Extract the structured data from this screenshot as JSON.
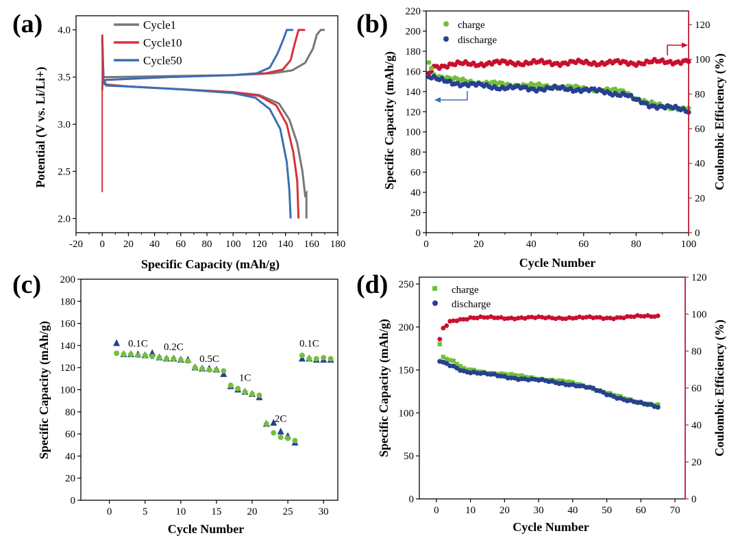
{
  "colors": {
    "gray": "#777777",
    "red": "#d9303b",
    "blue": "#3a6fb5",
    "green": "#73bf3c",
    "navy": "#27408f",
    "dred": "#c8102e",
    "axis": "#000000"
  },
  "chart_data": [
    {
      "panel_label": "(a)",
      "type": "line",
      "xlabel": "Specific Capacity (mAh/g)",
      "ylabel": "Potential (V vs. Li/Li+)",
      "xlim": [
        -20,
        180
      ],
      "ylim": [
        1.85,
        4.15
      ],
      "xticks": [
        "-20",
        "0",
        "20",
        "40",
        "60",
        "80",
        "100",
        "120",
        "140",
        "160",
        "180"
      ],
      "yticks": [
        "2.0",
        "2.5",
        "3.0",
        "3.5",
        "4.0"
      ],
      "series": [
        {
          "name": "Cycle1",
          "color": "#777777",
          "charge": [
            [
              0,
              3.36
            ],
            [
              0.5,
              3.5
            ],
            [
              5,
              3.5
            ],
            [
              50,
              3.51
            ],
            [
              100,
              3.52
            ],
            [
              130,
              3.54
            ],
            [
              145,
              3.57
            ],
            [
              155,
              3.65
            ],
            [
              161,
              3.8
            ],
            [
              164,
              3.95
            ],
            [
              167,
              4.0
            ],
            [
              170,
              4.0
            ]
          ],
          "discharge": [
            [
              0,
              3.9
            ],
            [
              1,
              3.48
            ],
            [
              3,
              3.42
            ],
            [
              20,
              3.4
            ],
            [
              60,
              3.37
            ],
            [
              100,
              3.34
            ],
            [
              120,
              3.31
            ],
            [
              135,
              3.22
            ],
            [
              143,
              3.05
            ],
            [
              149,
              2.8
            ],
            [
              153,
              2.5
            ],
            [
              155,
              2.25
            ],
            [
              156,
              2.27
            ],
            [
              156,
              2.0
            ]
          ]
        },
        {
          "name": "Cycle10",
          "color": "#d9303b",
          "charge": [
            [
              0,
              3.45
            ],
            [
              3,
              3.47
            ],
            [
              50,
              3.5
            ],
            [
              100,
              3.52
            ],
            [
              125,
              3.54
            ],
            [
              138,
              3.58
            ],
            [
              144,
              3.68
            ],
            [
              147,
              3.85
            ],
            [
              150,
              4.0
            ],
            [
              155,
              4.0
            ]
          ],
          "discharge": [
            [
              0,
              3.95
            ],
            [
              1,
              3.45
            ],
            [
              3,
              3.42
            ],
            [
              20,
              3.4
            ],
            [
              60,
              3.37
            ],
            [
              100,
              3.34
            ],
            [
              120,
              3.3
            ],
            [
              133,
              3.2
            ],
            [
              141,
              3.0
            ],
            [
              146,
              2.7
            ],
            [
              149,
              2.4
            ],
            [
              150,
              2.0
            ]
          ]
        },
        {
          "name": "Cycle50",
          "color": "#3a6fb5",
          "charge": [
            [
              0,
              3.45
            ],
            [
              3,
              3.47
            ],
            [
              50,
              3.5
            ],
            [
              100,
              3.52
            ],
            [
              118,
              3.54
            ],
            [
              128,
              3.6
            ],
            [
              134,
              3.75
            ],
            [
              139,
              3.92
            ],
            [
              141,
              4.0
            ],
            [
              146,
              4.0
            ]
          ],
          "discharge": [
            [
              0,
              3.9
            ],
            [
              1,
              3.44
            ],
            [
              3,
              3.41
            ],
            [
              20,
              3.4
            ],
            [
              60,
              3.37
            ],
            [
              100,
              3.33
            ],
            [
              117,
              3.28
            ],
            [
              128,
              3.16
            ],
            [
              136,
              2.95
            ],
            [
              141,
              2.6
            ],
            [
              143,
              2.3
            ],
            [
              144,
              2.0
            ]
          ]
        }
      ],
      "first_point_discharge_start": 2.28
    },
    {
      "panel_label": "(b)",
      "type": "scatter",
      "xlabel": "Cycle  Number",
      "ylabel": "Specific Capacity (mAh/g)",
      "ylabel_right": "Coulombic Efficiency (%)",
      "xlim": [
        0,
        100
      ],
      "ylim": [
        0,
        220
      ],
      "ylim_right": [
        0,
        120
      ],
      "xticks": [
        "0",
        "20",
        "40",
        "60",
        "80",
        "100"
      ],
      "yticks": [
        "0",
        "20",
        "40",
        "60",
        "80",
        "100",
        "120",
        "140",
        "160",
        "180",
        "200",
        "220"
      ],
      "yticks_right": [
        "0",
        "20",
        "40",
        "60",
        "80",
        "100",
        "120"
      ],
      "legend": [
        "charge",
        "discharge"
      ],
      "charge_trend": [
        [
          1,
          170
        ],
        [
          3,
          157
        ],
        [
          10,
          152
        ],
        [
          20,
          149
        ],
        [
          30,
          147
        ],
        [
          40,
          146
        ],
        [
          50,
          145
        ],
        [
          60,
          143
        ],
        [
          70,
          141
        ],
        [
          76,
          140
        ],
        [
          80,
          133
        ],
        [
          85,
          128
        ],
        [
          90,
          126
        ],
        [
          95,
          124
        ],
        [
          100,
          122
        ]
      ],
      "discharge_trend": [
        [
          1,
          155
        ],
        [
          5,
          151
        ],
        [
          10,
          149
        ],
        [
          20,
          146
        ],
        [
          30,
          144
        ],
        [
          40,
          143
        ],
        [
          50,
          143
        ],
        [
          60,
          142
        ],
        [
          70,
          139
        ],
        [
          76,
          137
        ],
        [
          80,
          131
        ],
        [
          85,
          127
        ],
        [
          90,
          125
        ],
        [
          95,
          123
        ],
        [
          100,
          121
        ]
      ],
      "efficiency_trend": [
        [
          1,
          91
        ],
        [
          3,
          96
        ],
        [
          10,
          97
        ],
        [
          30,
          98
        ],
        [
          60,
          98
        ],
        [
          80,
          98
        ],
        [
          100,
          99
        ]
      ]
    },
    {
      "panel_label": "(c)",
      "type": "scatter",
      "xlabel": "Cycle  Number",
      "ylabel": "Specific Capacity (mAh/g)",
      "xlim": [
        -4,
        32
      ],
      "ylim": [
        0,
        200
      ],
      "xticks": [
        "0",
        "5",
        "10",
        "15",
        "20",
        "25",
        "30"
      ],
      "yticks": [
        "0",
        "20",
        "40",
        "60",
        "80",
        "100",
        "120",
        "140",
        "160",
        "180",
        "200"
      ],
      "rate_labels": [
        {
          "text": "0.1C",
          "x": 4,
          "y": 139
        },
        {
          "text": "0.2C",
          "x": 9,
          "y": 136
        },
        {
          "text": "0.5C",
          "x": 14,
          "y": 125
        },
        {
          "text": "1C",
          "x": 19,
          "y": 108
        },
        {
          "text": "2C",
          "x": 24,
          "y": 71
        },
        {
          "text": "0.1C",
          "x": 28,
          "y": 139
        }
      ],
      "discharge_triangles": [
        142,
        132,
        132,
        132,
        131,
        133,
        129,
        128,
        128,
        127,
        127,
        120,
        119,
        119,
        118,
        114,
        103,
        100,
        98,
        96,
        93,
        69,
        70,
        62,
        58,
        52,
        128,
        128,
        127,
        127,
        127
      ],
      "charge_circles": [
        133,
        132,
        132,
        131,
        131,
        130,
        129,
        128,
        128,
        127,
        126,
        120,
        119,
        118,
        118,
        117,
        104,
        101,
        98,
        96,
        95,
        69,
        61,
        57,
        56,
        54,
        131,
        128,
        128,
        129,
        128
      ]
    },
    {
      "panel_label": "(d)",
      "type": "scatter",
      "xlabel": "Cycle  Number",
      "ylabel": "Specific Capacity (mAh/g)",
      "ylabel_right": "Coulombic Efficiency (%)",
      "xlim": [
        -5,
        73
      ],
      "ylim": [
        0,
        258
      ],
      "ylim_right": [
        0,
        120
      ],
      "xticks": [
        "0",
        "10",
        "20",
        "30",
        "40",
        "50",
        "60",
        "70"
      ],
      "yticks": [
        "0",
        "50",
        "100",
        "150",
        "200",
        "250"
      ],
      "yticks_right": [
        "0",
        "20",
        "40",
        "60",
        "80",
        "100",
        "120"
      ],
      "legend": [
        "charge",
        "discharge"
      ],
      "charge_trend": [
        [
          1,
          181
        ],
        [
          2,
          165
        ],
        [
          5,
          160
        ],
        [
          8,
          151
        ],
        [
          15,
          147
        ],
        [
          20,
          145
        ],
        [
          30,
          140
        ],
        [
          40,
          135
        ],
        [
          45,
          130
        ],
        [
          50,
          123
        ],
        [
          55,
          117
        ],
        [
          60,
          112
        ],
        [
          65,
          109
        ]
      ],
      "discharge_trend": [
        [
          1,
          160
        ],
        [
          2,
          158
        ],
        [
          5,
          154
        ],
        [
          8,
          149
        ],
        [
          15,
          145
        ],
        [
          20,
          142
        ],
        [
          30,
          138
        ],
        [
          40,
          133
        ],
        [
          45,
          129
        ],
        [
          50,
          122
        ],
        [
          55,
          116
        ],
        [
          60,
          111
        ],
        [
          65,
          107
        ]
      ],
      "efficiency_trend": [
        [
          1,
          86
        ],
        [
          2,
          92
        ],
        [
          4,
          96
        ],
        [
          6,
          97
        ],
        [
          10,
          98
        ],
        [
          30,
          98
        ],
        [
          50,
          98
        ],
        [
          65,
          99
        ]
      ]
    }
  ]
}
